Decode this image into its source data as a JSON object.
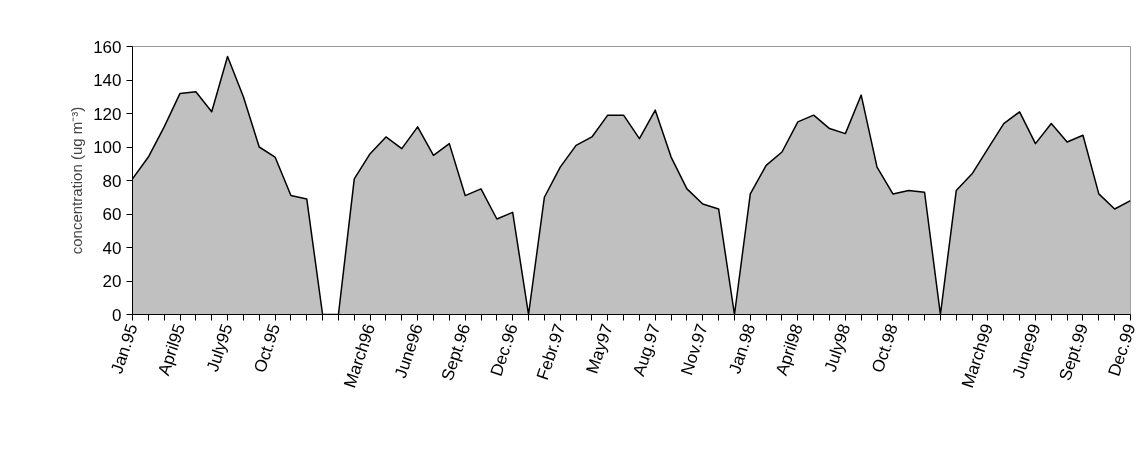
{
  "chart_data": {
    "type": "area",
    "ylabel": "concentration (ug m⁻³)",
    "categories": [
      "Jan.95",
      null,
      null,
      "April95",
      null,
      null,
      "July95",
      null,
      null,
      "Oct.95",
      null,
      null,
      null,
      null,
      null,
      "March96",
      null,
      null,
      "June96",
      null,
      null,
      "Sept.96",
      null,
      null,
      "Dec.96",
      null,
      null,
      "Febr.97",
      null,
      null,
      "May97",
      null,
      null,
      "Aug.97",
      null,
      null,
      "Nov.97",
      null,
      null,
      "Jan.98",
      null,
      null,
      "April98",
      null,
      null,
      "July98",
      null,
      null,
      "Oct.98",
      null,
      null,
      null,
      null,
      null,
      "March99",
      null,
      null,
      "June99",
      null,
      null,
      "Sept.99",
      null,
      null,
      "Dec.99"
    ],
    "series": [
      {
        "color": "#c0c0c0",
        "values": [
          81,
          94,
          112,
          132,
          133,
          121,
          154,
          130,
          100,
          94,
          71,
          69,
          0,
          0,
          81,
          96,
          106,
          99,
          112,
          95,
          102,
          71,
          75,
          57,
          61,
          0,
          70,
          88,
          101,
          106,
          119,
          119,
          105,
          122,
          94,
          75,
          66,
          63,
          0,
          72,
          89,
          97,
          115,
          119,
          111,
          108,
          131,
          88,
          72,
          74,
          73,
          0,
          74,
          84,
          99,
          114,
          121,
          102,
          114,
          103,
          107,
          72,
          63,
          68
        ]
      }
    ],
    "ylim": [
      0,
      160
    ],
    "yticks": [
      0,
      20,
      40,
      60,
      80,
      100,
      120,
      140,
      160
    ]
  }
}
